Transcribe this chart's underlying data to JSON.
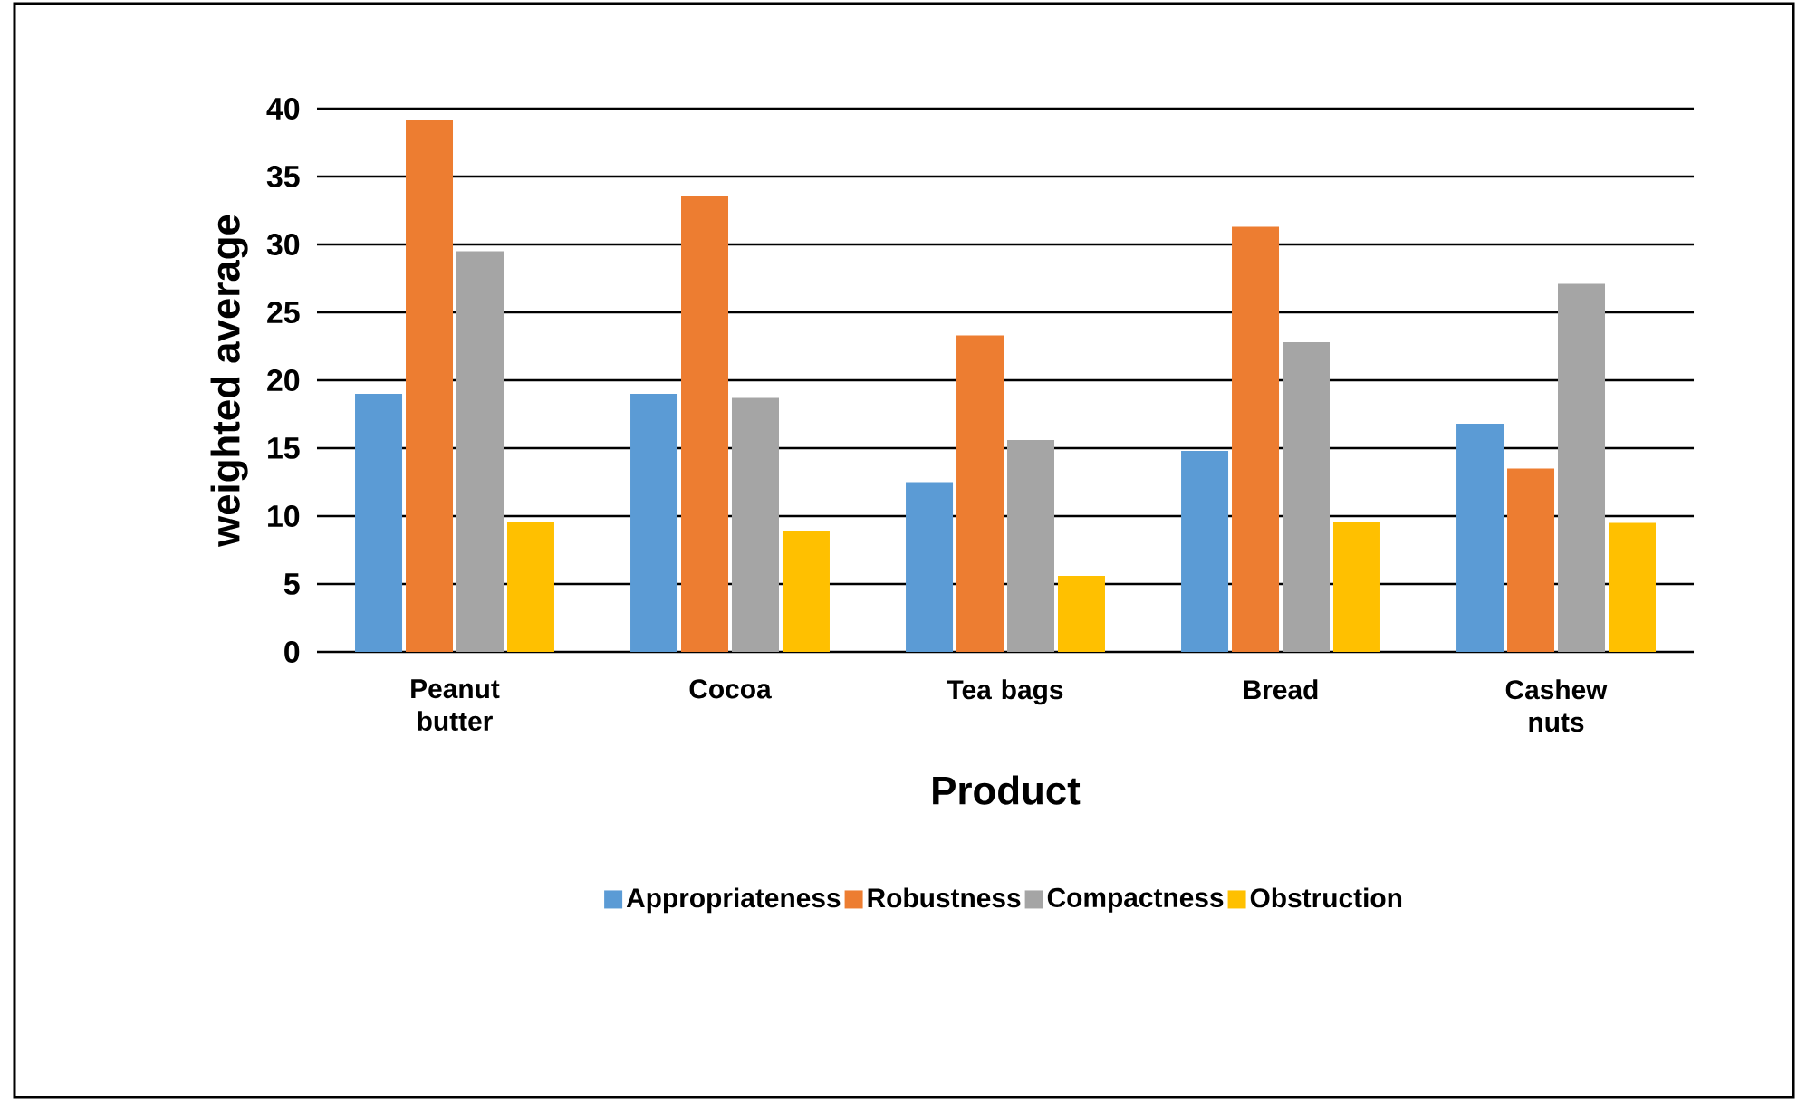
{
  "chart_data": {
    "type": "bar",
    "xlabel": "Product",
    "ylabel": "weighted average",
    "categories": [
      "Peanut butter",
      "Cocoa",
      "Tea bags",
      "Bread",
      "Cashew nuts"
    ],
    "series": [
      {
        "name": "Appropriateness",
        "color": "#5b9bd5",
        "values": [
          19,
          19,
          12.5,
          14.8,
          16.8
        ]
      },
      {
        "name": "Robustness",
        "color": "#ed7d31",
        "values": [
          39.2,
          33.6,
          23.3,
          31.3,
          13.5
        ]
      },
      {
        "name": "Compactness",
        "color": "#a5a5a5",
        "values": [
          29.5,
          18.7,
          15.6,
          22.8,
          27.1
        ]
      },
      {
        "name": "Obstruction",
        "color": "#ffc000",
        "values": [
          9.6,
          8.9,
          5.6,
          9.6,
          9.5
        ]
      }
    ],
    "ylim": [
      0,
      40
    ],
    "yticks": [
      0,
      5,
      10,
      15,
      20,
      25,
      30,
      35,
      40
    ],
    "grid": "y",
    "legend": "bottom"
  }
}
